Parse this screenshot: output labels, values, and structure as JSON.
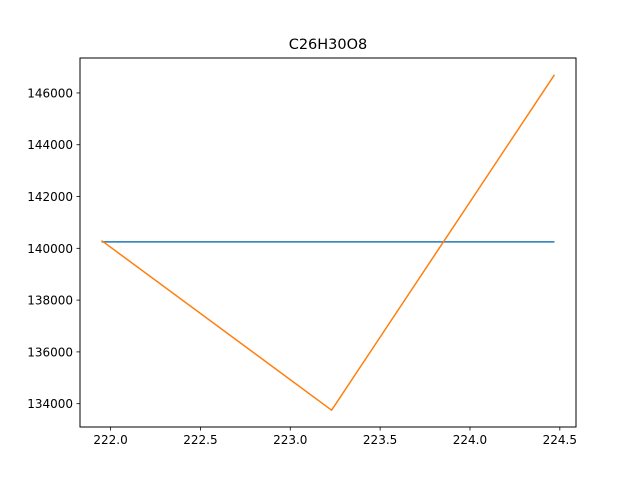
{
  "chart_data": {
    "type": "line",
    "title": "C26H30O8",
    "xlabel": "",
    "ylabel": "",
    "xlim": [
      221.83,
      224.59
    ],
    "ylim": [
      133100,
      147350
    ],
    "grid": false,
    "legend": "none",
    "xticks": [
      222.0,
      222.5,
      223.0,
      223.5,
      224.0,
      224.5
    ],
    "xtick_labels": [
      "222.0",
      "222.5",
      "223.0",
      "223.5",
      "224.0",
      "224.5"
    ],
    "yticks": [
      134000,
      136000,
      138000,
      140000,
      142000,
      144000,
      146000
    ],
    "ytick_labels": [
      "134000",
      "136000",
      "138000",
      "140000",
      "142000",
      "144000",
      "146000"
    ],
    "series": [
      {
        "color": "#1f77b4",
        "x": [
          221.95,
          224.47
        ],
        "y": [
          140250,
          140250
        ]
      },
      {
        "color": "#ff7f0e",
        "x": [
          221.95,
          223.23,
          224.47
        ],
        "y": [
          140300,
          133750,
          146700
        ]
      }
    ]
  }
}
